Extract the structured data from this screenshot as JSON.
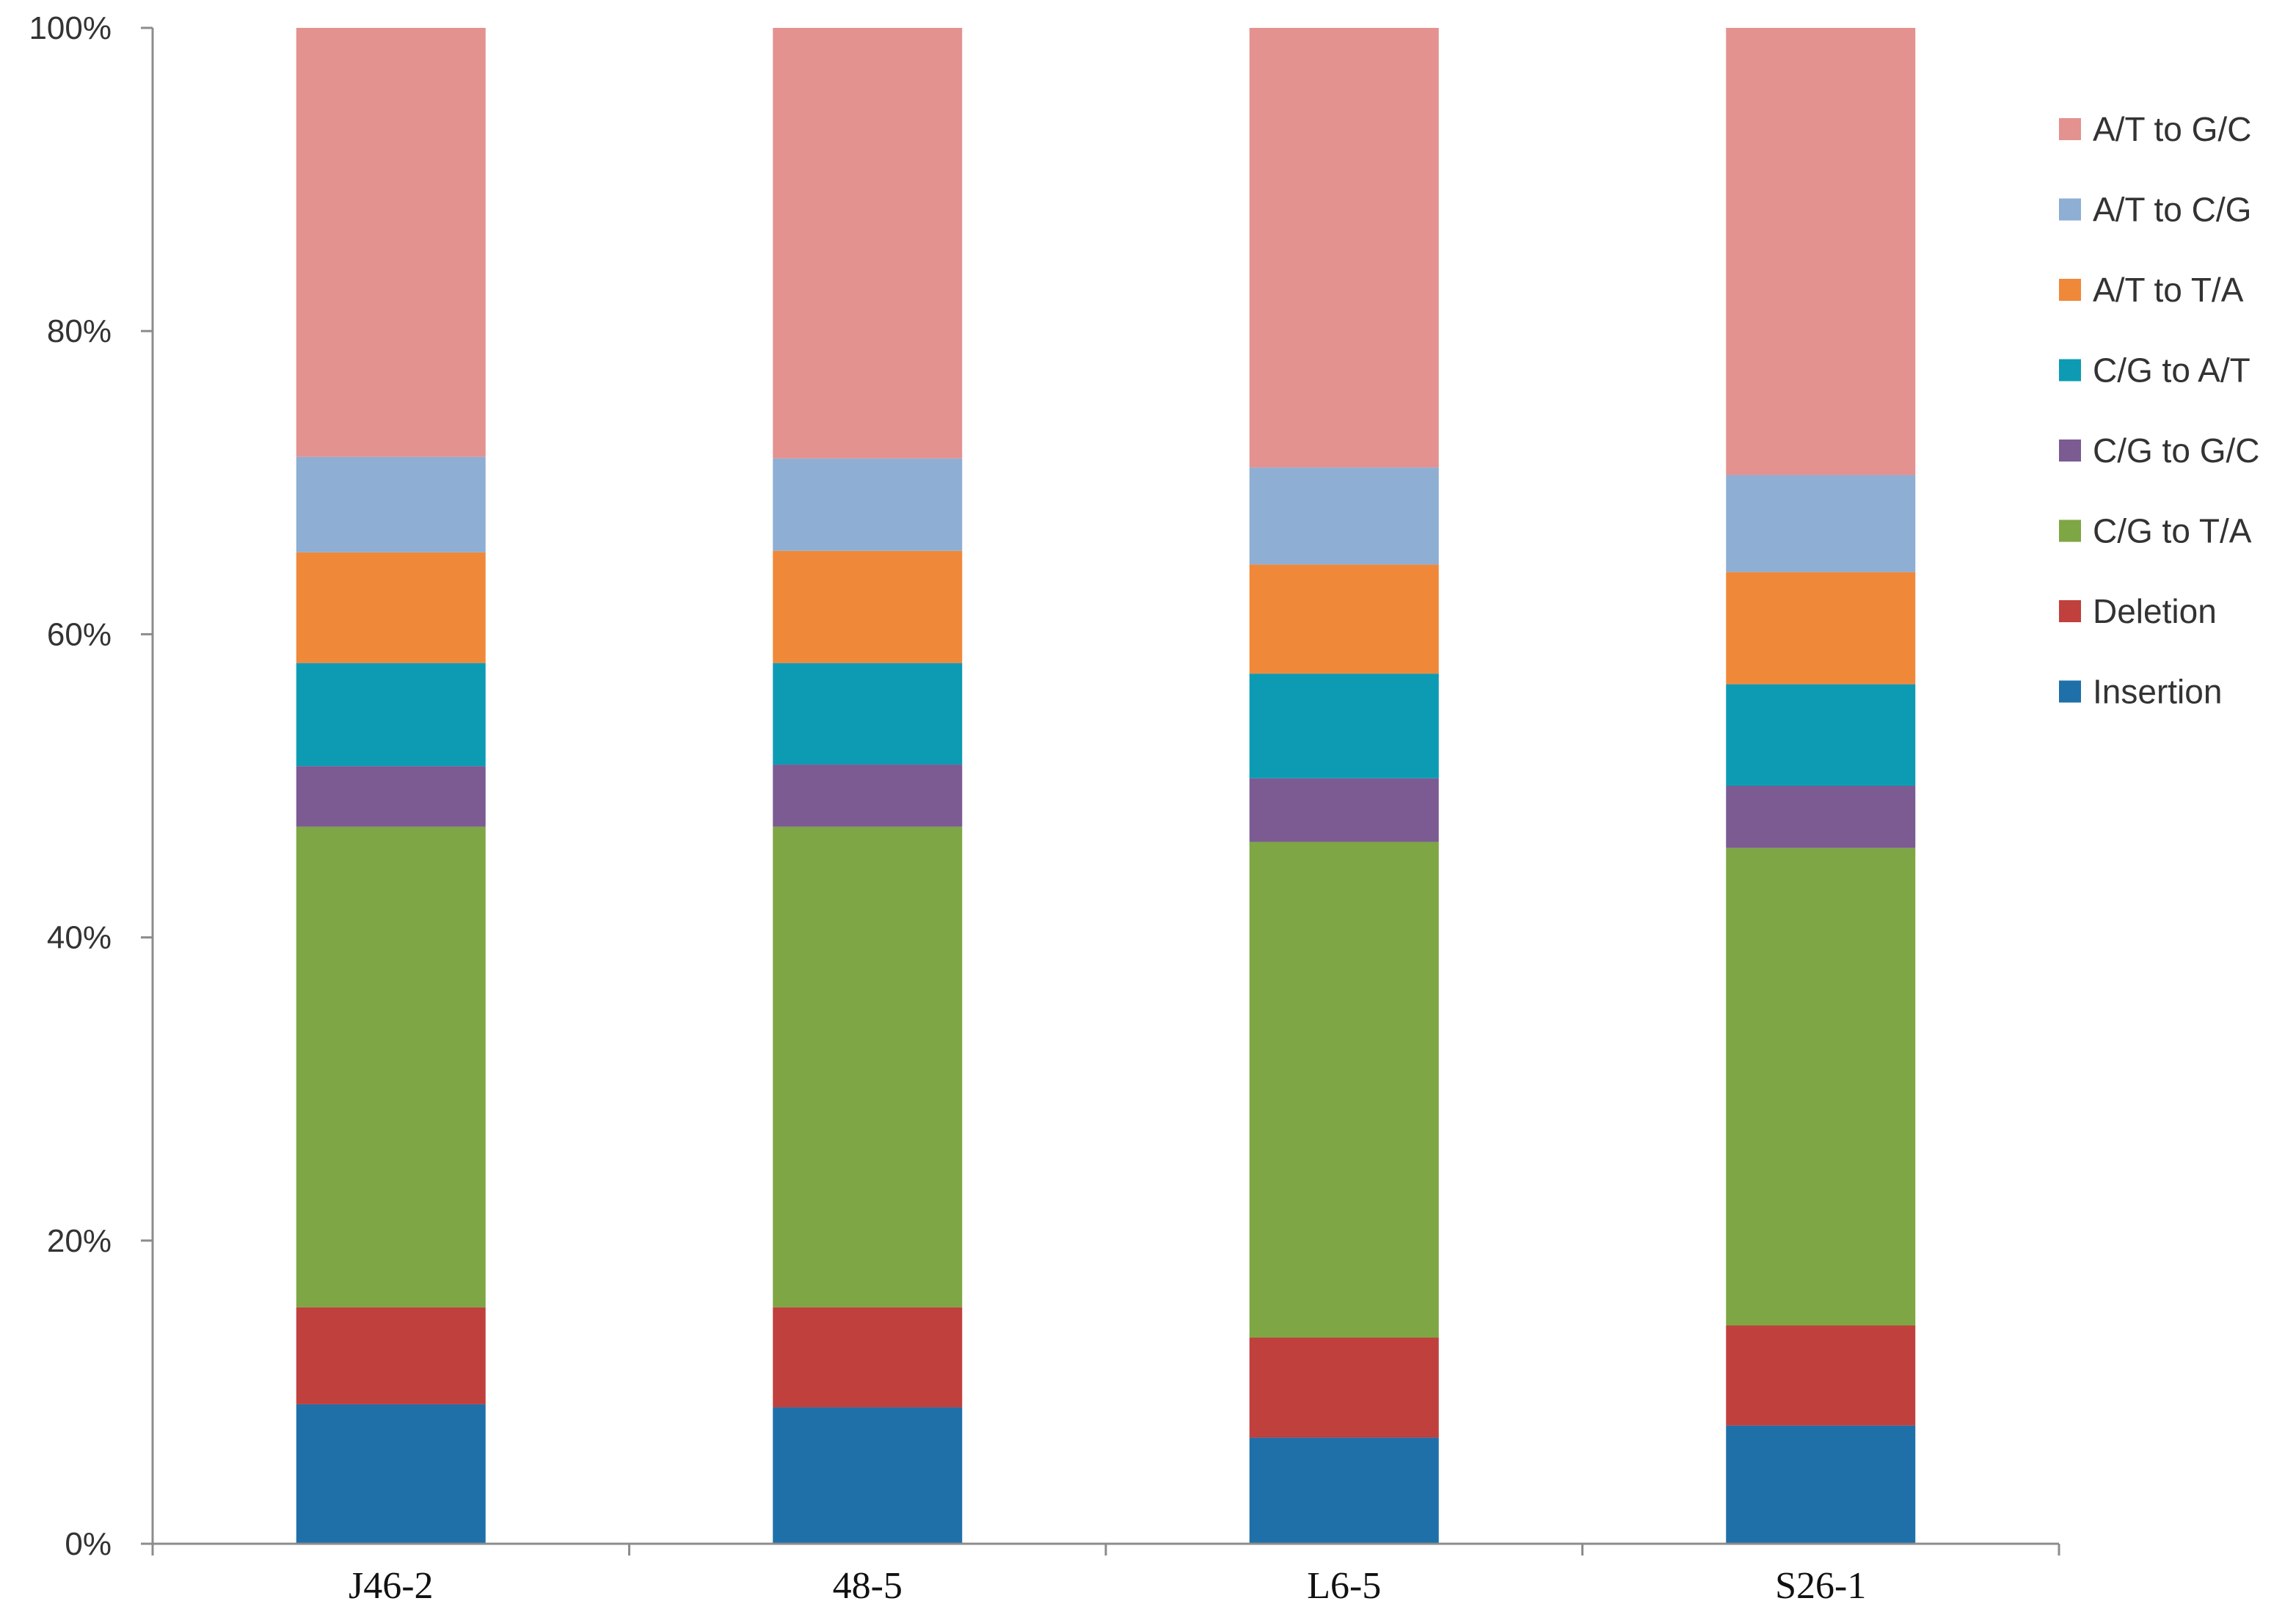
{
  "chart_data": {
    "type": "bar",
    "stacked": true,
    "percent_stacked": true,
    "categories": [
      "J46-2",
      "48-5",
      "L6-5",
      "S26-1"
    ],
    "ylim": [
      0,
      100
    ],
    "yticks": [
      "0%",
      "20%",
      "40%",
      "60%",
      "80%",
      "100%"
    ],
    "grid": false,
    "legend_position": "right",
    "legend_order": [
      "A/T to G/C",
      "A/T to C/G",
      "A/T to T/A",
      "C/G to A/T",
      "C/G to G/C",
      "C/G to T/A",
      "Deletion",
      "Insertion"
    ],
    "series": [
      {
        "name": "Insertion",
        "color": "#1f70a9",
        "values": [
          9.2,
          9.0,
          7.0,
          7.8
        ]
      },
      {
        "name": "Deletion",
        "color": "#c0403d",
        "values": [
          6.4,
          6.6,
          6.6,
          6.6
        ]
      },
      {
        "name": "C/G to T/A",
        "color": "#7ea644",
        "values": [
          31.7,
          31.7,
          32.7,
          31.5
        ]
      },
      {
        "name": "C/G to G/C",
        "color": "#7b5b92",
        "values": [
          4.0,
          4.1,
          4.2,
          4.1
        ]
      },
      {
        "name": "C/G to A/T",
        "color": "#0d9bb3",
        "values": [
          6.8,
          6.7,
          6.9,
          6.7
        ]
      },
      {
        "name": "A/T to T/A",
        "color": "#f0883a",
        "values": [
          7.3,
          7.4,
          7.2,
          7.4
        ]
      },
      {
        "name": "A/T to C/G",
        "color": "#8eaed3",
        "values": [
          6.3,
          6.1,
          6.4,
          6.4
        ]
      },
      {
        "name": "A/T to G/C",
        "color": "#e39290",
        "values": [
          28.3,
          28.4,
          29.0,
          29.5
        ]
      }
    ]
  }
}
